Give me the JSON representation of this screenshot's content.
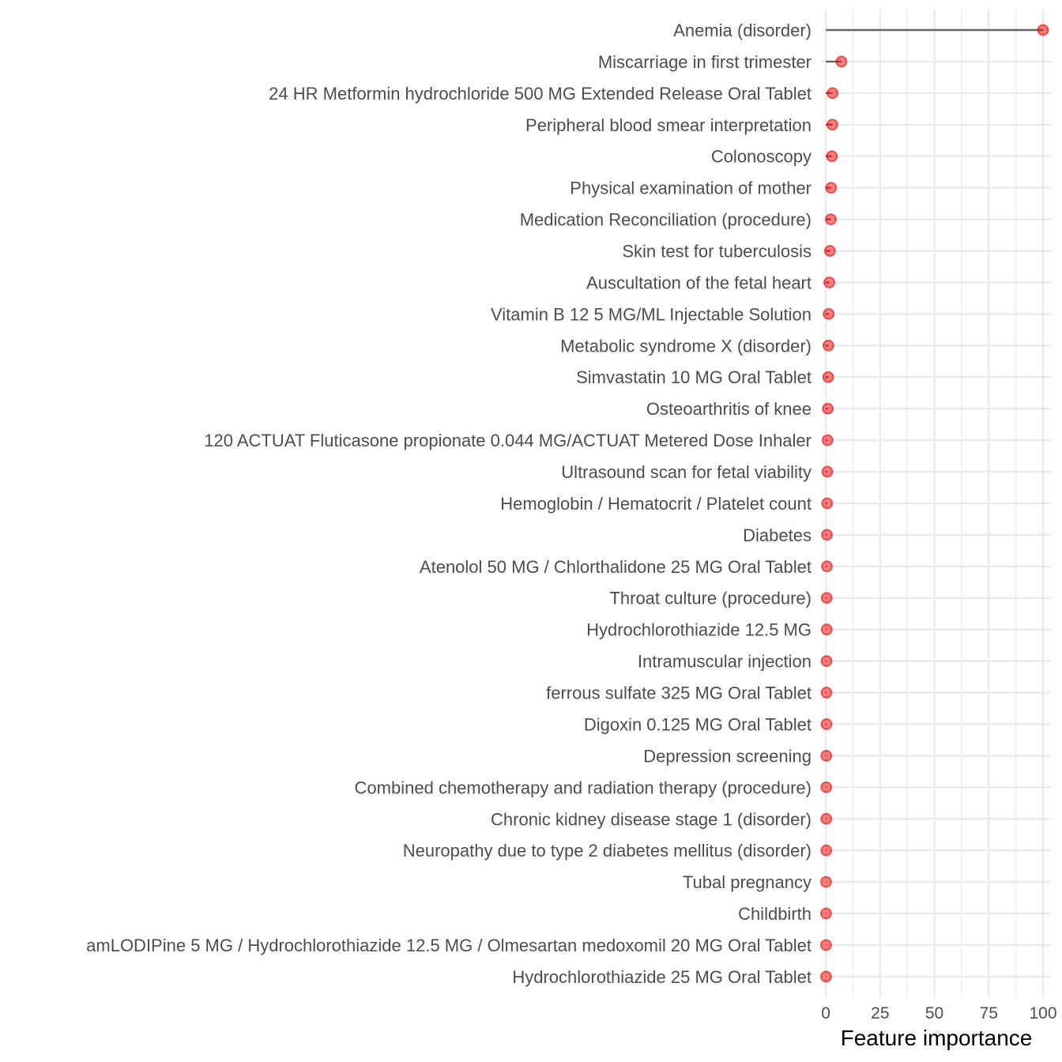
{
  "chart_data": {
    "type": "lollipop",
    "orientation": "horizontal",
    "xlabel": "Feature importance",
    "xlim": [
      -1.5,
      104
    ],
    "xticks": [
      0,
      25,
      50,
      75,
      100
    ],
    "xtick_labels": [
      "0",
      "25",
      "50",
      "75",
      "100"
    ],
    "grid": true,
    "colors": {
      "point": "#ff0000",
      "stem": "#666666",
      "grid": "#ebebeb",
      "label": "#4d4d4d"
    },
    "categories": [
      "Anemia (disorder)",
      "Miscarriage in first trimester",
      "24 HR Metformin hydrochloride 500 MG Extended Release Oral Tablet",
      "Peripheral blood smear interpretation",
      "Colonoscopy",
      "Physical examination of mother",
      "Medication Reconciliation (procedure)",
      "Skin test for tuberculosis",
      "Auscultation of the fetal heart",
      "Vitamin B 12 5 MG/ML Injectable Solution",
      "Metabolic syndrome X (disorder)",
      "Simvastatin 10 MG Oral Tablet",
      "Osteoarthritis of knee",
      "120 ACTUAT Fluticasone propionate 0.044 MG/ACTUAT Metered Dose Inhaler",
      "Ultrasound scan for fetal viability",
      "Hemoglobin / Hematocrit / Platelet count",
      "Diabetes",
      "Atenolol 50 MG / Chlorthalidone 25 MG Oral Tablet",
      "Throat culture (procedure)",
      "Hydrochlorothiazide 12.5 MG",
      "Intramuscular injection",
      "ferrous sulfate 325 MG Oral Tablet",
      "Digoxin 0.125 MG Oral Tablet",
      "Depression screening",
      "Combined chemotherapy and radiation therapy (procedure)",
      "Chronic kidney disease stage 1 (disorder)",
      "Neuropathy due to type 2 diabetes mellitus (disorder)",
      "Tubal pregnancy",
      "Childbirth",
      "amLODIPine 5 MG / Hydrochlorothiazide 12.5 MG / Olmesartan medoxomil 20 MG Oral Tablet",
      "Hydrochlorothiazide 25 MG Oral Tablet"
    ],
    "values": [
      100,
      7.2,
      3.1,
      3.0,
      2.8,
      2.4,
      2.3,
      1.9,
      1.6,
      1.3,
      1.2,
      1.1,
      0.9,
      0.8,
      0.7,
      0.6,
      0.5,
      0.5,
      0.4,
      0.4,
      0.3,
      0.3,
      0.3,
      0.2,
      0.2,
      0.2,
      0.2,
      0.1,
      0.1,
      0.1,
      0.1
    ]
  }
}
